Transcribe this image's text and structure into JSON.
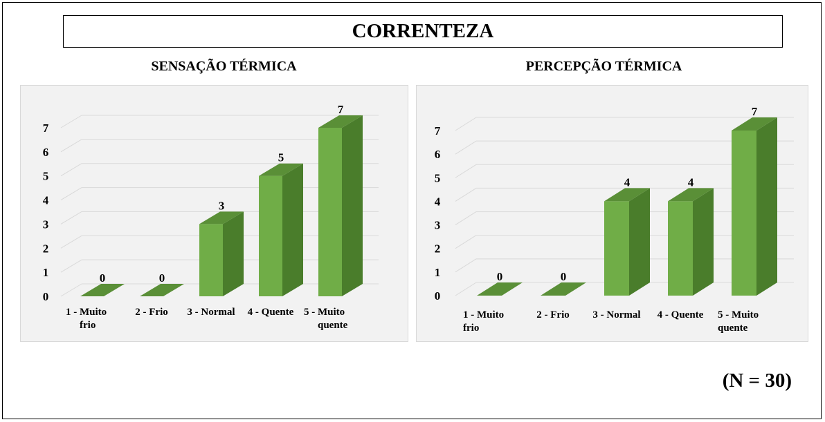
{
  "page_title": "CORRENTEZA",
  "sample_note": "(N = 30)",
  "colors": {
    "bar_front": "#70ad47",
    "bar_side": "#4a7d2b",
    "bar_top": "#5a8f37",
    "grid": "#d9d9d9",
    "background": "#f2f2f2"
  },
  "chart_data": [
    {
      "type": "bar",
      "title": "SENSAÇÃO TÉRMICA",
      "categories": [
        [
          "1 - Muito",
          "frio"
        ],
        [
          "2 - Frio"
        ],
        [
          "3 - Normal"
        ],
        [
          "4 - Quente"
        ],
        [
          "5 - Muito",
          "quente"
        ]
      ],
      "values": [
        0,
        0,
        3,
        5,
        7
      ],
      "yticks": [
        0,
        1,
        2,
        3,
        4,
        5,
        6,
        7
      ],
      "ylim": [
        0,
        7
      ],
      "grid": true,
      "style": "3d-column",
      "data_labels": true
    },
    {
      "type": "bar",
      "title": "PERCEPÇÃO TÉRMICA",
      "categories": [
        [
          "1 - Muito",
          "frio"
        ],
        [
          "2 - Frio"
        ],
        [
          "3 - Normal"
        ],
        [
          "4 - Quente"
        ],
        [
          "5 - Muito",
          "quente"
        ]
      ],
      "values": [
        0,
        0,
        4,
        4,
        7
      ],
      "yticks": [
        0,
        1,
        2,
        3,
        4,
        5,
        6,
        7
      ],
      "ylim": [
        0,
        7
      ],
      "grid": true,
      "style": "3d-column",
      "data_labels": true
    }
  ]
}
